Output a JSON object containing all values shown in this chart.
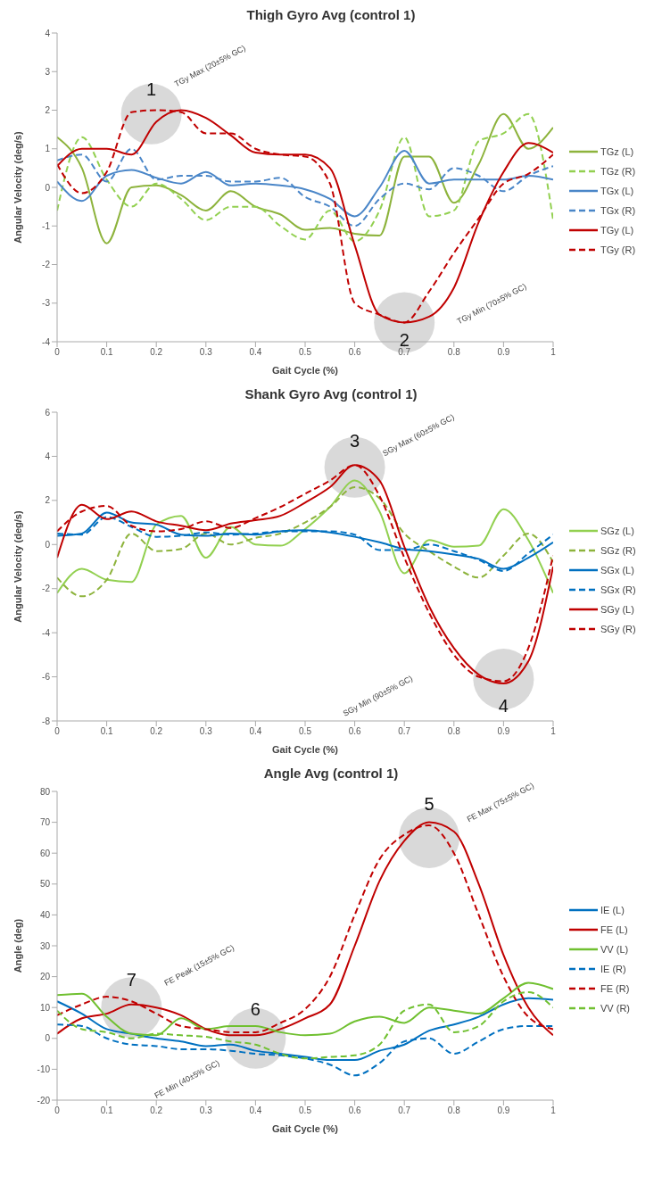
{
  "chart_data": [
    {
      "type": "line",
      "title": "Thigh Gyro Avg (control 1)",
      "xlabel": "Gait Cycle (%)",
      "ylabel": "Angular Velocity (deg/s)",
      "legend": "right",
      "x": [
        0,
        0.05,
        0.1,
        0.15,
        0.2,
        0.25,
        0.3,
        0.35,
        0.4,
        0.45,
        0.5,
        0.55,
        0.6,
        0.65,
        0.7,
        0.75,
        0.8,
        0.85,
        0.9,
        0.95,
        1
      ],
      "xlim": [
        0,
        1
      ],
      "xticks": [
        0,
        0.1,
        0.2,
        0.3,
        0.4,
        0.5,
        0.6,
        0.7,
        0.8,
        0.9,
        1
      ],
      "ylim": [
        -4,
        4
      ],
      "yticks": [
        -4,
        -3,
        -2,
        -1,
        0,
        1,
        2,
        3,
        4
      ],
      "series": [
        {
          "name": "TGz (L)",
          "color": "#8db33c",
          "line_style": "solid",
          "values": [
            1.3,
            0.5,
            -1.45,
            0,
            0.05,
            -0.2,
            -0.6,
            -0.1,
            -0.5,
            -0.7,
            -1.1,
            -1.05,
            -1.2,
            -1.25,
            0.8,
            0.8,
            -0.4,
            0.6,
            1.9,
            1.0,
            1.55
          ]
        },
        {
          "name": "TGz (R)",
          "color": "#92d050",
          "line_style": "dashed",
          "values": [
            -0.6,
            1.3,
            0.2,
            -0.5,
            0.1,
            -0.3,
            -0.85,
            -0.5,
            -0.5,
            -1.0,
            -1.35,
            -0.6,
            -1.4,
            -0.6,
            1.3,
            -0.75,
            -0.6,
            1.2,
            1.4,
            1.9,
            -0.85
          ]
        },
        {
          "name": "TGx (L)",
          "color": "#4a86c8",
          "line_style": "solid",
          "values": [
            0.15,
            -0.35,
            0.3,
            0.45,
            0.25,
            0.1,
            0.4,
            0.05,
            0.1,
            0.05,
            -0.05,
            -0.3,
            -0.75,
            0,
            0.95,
            0.1,
            0.2,
            0.2,
            0.2,
            0.3,
            0.2
          ]
        },
        {
          "name": "TGx (R)",
          "color": "#4a86c8",
          "line_style": "dashed",
          "values": [
            0.7,
            0.85,
            0.15,
            1.0,
            0.2,
            0.3,
            0.3,
            0.15,
            0.15,
            0.25,
            -0.25,
            -0.5,
            -1.0,
            -0.3,
            0.1,
            -0.05,
            0.5,
            0.3,
            -0.1,
            0.3,
            0.55
          ]
        },
        {
          "name": "TGy (L)",
          "color": "#c00000",
          "line_style": "solid",
          "values": [
            0.55,
            1.0,
            1.0,
            0.85,
            1.7,
            2.0,
            1.8,
            1.35,
            0.9,
            0.85,
            0.85,
            0.5,
            -1.5,
            -3.3,
            -3.5,
            -3.35,
            -2.6,
            -0.9,
            0.4,
            1.15,
            0.9
          ]
        },
        {
          "name": "TGy (R)",
          "color": "#c00000",
          "line_style": "dashed",
          "values": [
            0.6,
            -0.15,
            0.4,
            1.95,
            2.0,
            1.95,
            1.4,
            1.4,
            1.0,
            0.85,
            0.8,
            0.1,
            -3.0,
            -3.3,
            -3.5,
            -2.7,
            -1.7,
            -0.8,
            0.1,
            0.35,
            0.85
          ]
        }
      ],
      "annotations": [
        "1",
        "TGy Max (20±5% GC)",
        "2",
        "TGy Min (70±5% GC)"
      ]
    },
    {
      "type": "line",
      "title": "Shank Gyro Avg (control 1)",
      "xlabel": "Gait Cycle (%)",
      "ylabel": "Angular Velocity (deg/s)",
      "legend": "right",
      "x": [
        0,
        0.05,
        0.1,
        0.15,
        0.2,
        0.25,
        0.3,
        0.35,
        0.4,
        0.45,
        0.5,
        0.55,
        0.6,
        0.65,
        0.7,
        0.75,
        0.8,
        0.85,
        0.9,
        0.95,
        1
      ],
      "xlim": [
        0,
        1
      ],
      "xticks": [
        0,
        0.1,
        0.2,
        0.3,
        0.4,
        0.5,
        0.6,
        0.7,
        0.8,
        0.9,
        1
      ],
      "ylim": [
        -8,
        6
      ],
      "yticks": [
        -8,
        -6,
        -4,
        -2,
        0,
        2,
        4,
        6
      ],
      "series": [
        {
          "name": "SGz (L)",
          "color": "#92d050",
          "line_style": "solid",
          "values": [
            -2.2,
            -1.1,
            -1.6,
            -1.7,
            0.9,
            1.3,
            -0.6,
            0.8,
            0,
            -0.05,
            0.7,
            1.7,
            2.9,
            1.5,
            -1.3,
            0.2,
            -0.1,
            -0.05,
            1.6,
            0.2,
            -2.2
          ]
        },
        {
          "name": "SGz (R)",
          "color": "#8db33c",
          "line_style": "dashed",
          "values": [
            -1.5,
            -2.35,
            -1.6,
            0.5,
            -0.3,
            -0.2,
            0.5,
            0,
            0.3,
            0.5,
            1.0,
            1.7,
            2.6,
            2.1,
            0.5,
            -0.3,
            -1.0,
            -1.5,
            -0.5,
            0.5,
            -0.8
          ]
        },
        {
          "name": "SGx (L)",
          "color": "#0070c0",
          "line_style": "solid",
          "values": [
            0.4,
            0.5,
            1.45,
            1.0,
            0.9,
            0.45,
            0.4,
            0.5,
            0.45,
            0.6,
            0.65,
            0.55,
            0.35,
            0.1,
            -0.2,
            -0.3,
            -0.45,
            -0.65,
            -1.1,
            -0.6,
            0.1
          ]
        },
        {
          "name": "SGx (R)",
          "color": "#0070c0",
          "line_style": "dashed",
          "values": [
            0.5,
            0.45,
            1.25,
            0.8,
            0.35,
            0.4,
            0.55,
            0.45,
            0.5,
            0.6,
            0.6,
            0.6,
            0.45,
            -0.25,
            -0.25,
            0,
            -0.3,
            -0.7,
            -1.2,
            -0.4,
            0.45
          ]
        },
        {
          "name": "SGy (L)",
          "color": "#c00000",
          "line_style": "solid",
          "values": [
            -0.6,
            1.8,
            1.15,
            1.5,
            1.05,
            0.85,
            0.65,
            0.95,
            1.1,
            1.3,
            1.9,
            2.6,
            3.6,
            2.9,
            -0.1,
            -2.8,
            -4.7,
            -5.9,
            -6.3,
            -5.3,
            -1.0
          ]
        },
        {
          "name": "SGy (R)",
          "color": "#c00000",
          "line_style": "dashed",
          "values": [
            0.6,
            1.5,
            1.75,
            0.85,
            0.6,
            0.7,
            1.05,
            0.75,
            1.2,
            1.7,
            2.3,
            2.9,
            3.6,
            2.2,
            -0.6,
            -3.1,
            -5.0,
            -6.0,
            -6.2,
            -4.7,
            -0.5
          ]
        }
      ],
      "annotations": [
        "3",
        "SGy Max (60±5% GC)",
        "4",
        "SGy Min (90±5% GC)"
      ]
    },
    {
      "type": "line",
      "title": "Angle Avg (control 1)",
      "xlabel": "Gait Cycle (%)",
      "ylabel": "Angle (deg)",
      "legend": "right",
      "x": [
        0,
        0.05,
        0.1,
        0.15,
        0.2,
        0.25,
        0.3,
        0.35,
        0.4,
        0.45,
        0.5,
        0.55,
        0.6,
        0.65,
        0.7,
        0.75,
        0.8,
        0.85,
        0.9,
        0.95,
        1
      ],
      "xlim": [
        0,
        1
      ],
      "xticks": [
        0,
        0.1,
        0.2,
        0.3,
        0.4,
        0.5,
        0.6,
        0.7,
        0.8,
        0.9,
        1
      ],
      "ylim": [
        -20,
        80
      ],
      "yticks": [
        -20,
        -10,
        0,
        10,
        20,
        30,
        40,
        50,
        60,
        70,
        80
      ],
      "series": [
        {
          "name": "IE (L)",
          "color": "#0070c0",
          "line_style": "solid",
          "values": [
            12,
            8,
            3,
            1.5,
            0,
            -1,
            -2.5,
            -2,
            -4,
            -5,
            -6,
            -7,
            -7,
            -4,
            -2,
            2.5,
            4.5,
            7,
            11,
            13,
            12.5
          ]
        },
        {
          "name": "FE (L)",
          "color": "#c00000",
          "line_style": "solid",
          "values": [
            1.5,
            6.5,
            8,
            11,
            10,
            7.5,
            3,
            1,
            1,
            3,
            6.5,
            11,
            30,
            51,
            64,
            70,
            67,
            50,
            27,
            10,
            1
          ]
        },
        {
          "name": "VV (L)",
          "color": "#70c030",
          "line_style": "solid",
          "values": [
            14,
            14.5,
            7,
            1.5,
            1,
            6.5,
            3,
            4,
            4,
            2,
            1,
            1.5,
            5.5,
            7,
            5,
            10,
            9,
            8,
            13,
            18,
            16
          ]
        },
        {
          "name": "IE (R)",
          "color": "#0070c0",
          "line_style": "dashed",
          "values": [
            4.5,
            4,
            0,
            -2,
            -2.5,
            -3.5,
            -3.5,
            -4,
            -5,
            -5.5,
            -6.5,
            -8.5,
            -12,
            -8,
            -1,
            0,
            -5,
            -1,
            3,
            4,
            4
          ]
        },
        {
          "name": "FE (R)",
          "color": "#c00000",
          "line_style": "dashed",
          "values": [
            7.5,
            11,
            13.5,
            12,
            8,
            4,
            3,
            2,
            2,
            5,
            9.5,
            20,
            40,
            58,
            66,
            69,
            60,
            40,
            20,
            7,
            3
          ]
        },
        {
          "name": "VV (R)",
          "color": "#70c030",
          "line_style": "dashed",
          "values": [
            9,
            3,
            2,
            0,
            1.5,
            1,
            0.5,
            -1,
            -2,
            -5,
            -6.5,
            -6,
            -5.5,
            -2,
            9,
            11,
            2,
            4,
            12,
            15,
            10
          ]
        }
      ],
      "annotations": [
        "5",
        "FE Max (75±5% GC)",
        "6",
        "FE Min (40±5% GC)",
        "7",
        "FE Peak (15±5% GC)"
      ]
    }
  ]
}
